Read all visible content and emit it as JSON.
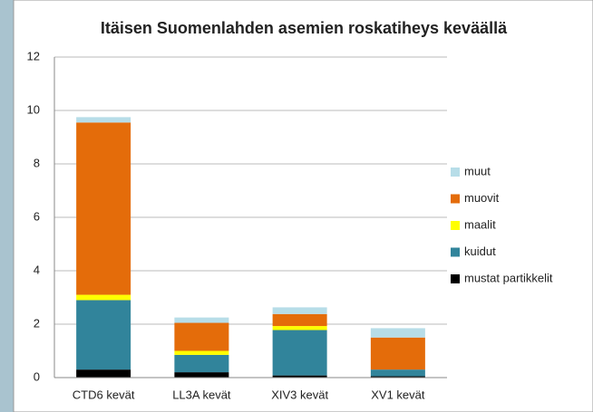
{
  "chart_data": {
    "type": "stacked_bar",
    "title": "Itäisen Suomenlahden asemien roskatiheys keväällä",
    "categories": [
      "CTD6 kevät",
      "LL3A kevät",
      "XIV3 kevät",
      "XV1 kevät"
    ],
    "series": [
      {
        "name": "mustat partikkelit",
        "color": "#000000",
        "values": [
          0.3,
          0.2,
          0.08,
          0.05
        ]
      },
      {
        "name": "kuidut",
        "color": "#31849b",
        "values": [
          2.6,
          0.65,
          1.7,
          0.25
        ]
      },
      {
        "name": "maalit",
        "color": "#ffff00",
        "values": [
          0.2,
          0.15,
          0.15,
          0
        ]
      },
      {
        "name": "muovit",
        "color": "#e46c0a",
        "values": [
          6.45,
          1.05,
          0.45,
          1.2
        ]
      },
      {
        "name": "muut",
        "color": "#b7dde8",
        "values": [
          0.2,
          0.2,
          0.25,
          0.35
        ]
      }
    ],
    "ylim": [
      0,
      12
    ],
    "yticks": [
      0,
      2,
      4,
      6,
      8,
      10,
      12
    ],
    "grid": true,
    "legend": "right"
  }
}
